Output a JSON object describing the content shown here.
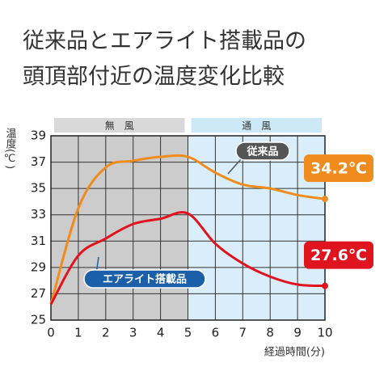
{
  "chart_data": {
    "type": "line",
    "title": [
      "従来品とエアライト搭載品の",
      "頭頂部付近の温度変化比較"
    ],
    "y_label": "温度(℃)",
    "x_label": "経過時間(分)",
    "x": [
      0,
      1,
      2,
      3,
      4,
      5,
      6,
      7,
      8,
      9,
      10
    ],
    "series": [
      {
        "name": "従来品",
        "color": "#f08c1e",
        "label_color": "#555555",
        "values": [
          26.2,
          33.5,
          36.6,
          37.1,
          37.4,
          37.4,
          36.2,
          35.3,
          35.0,
          34.5,
          34.2
        ],
        "value_labels": [
          null,
          null,
          null,
          null,
          null,
          null,
          null,
          null,
          null,
          null,
          "34.2℃"
        ]
      },
      {
        "name": "エアライト搭載品",
        "color": "#e0141e",
        "label_color": "#1a5fa8",
        "values": [
          26.2,
          29.9,
          31.2,
          32.3,
          32.7,
          33.1,
          30.8,
          29.3,
          28.3,
          27.7,
          27.6
        ],
        "value_labels": [
          null,
          null,
          null,
          null,
          null,
          null,
          null,
          null,
          null,
          null,
          "27.6℃"
        ]
      }
    ],
    "regions": [
      {
        "label": "無　風",
        "x": [
          0,
          5
        ],
        "color": "#cccccc",
        "label_bg": "#d9d9d9"
      },
      {
        "label": "通　風",
        "x": [
          5,
          10
        ],
        "color": "#d9eefa",
        "label_bg": "#cde9f8"
      }
    ],
    "xlim": [
      0,
      10
    ],
    "xticks": [
      0,
      1,
      2,
      3,
      4,
      5,
      6,
      7,
      8,
      9,
      10
    ],
    "ylim": [
      25,
      39
    ],
    "yticks": [
      25,
      27,
      29,
      31,
      33,
      35,
      37,
      39
    ],
    "grid": true
  }
}
